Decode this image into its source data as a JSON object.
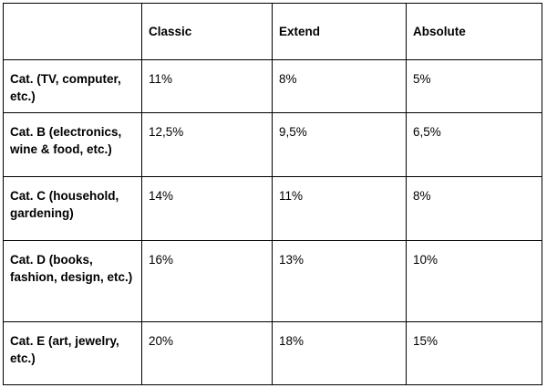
{
  "table": {
    "columns": [
      "Classic",
      "Extend",
      "Absolute"
    ],
    "rows": [
      {
        "label": "Cat. (TV, computer, etc.)",
        "cells": [
          "11%",
          "8%",
          "5%"
        ]
      },
      {
        "label": "Cat. B (electronics, wine & food, etc.)",
        "cells": [
          "12,5%",
          "9,5%",
          "6,5%"
        ]
      },
      {
        "label": "Cat. C (household, gardening)",
        "cells": [
          "14%",
          "11%",
          "8%"
        ]
      },
      {
        "label": "Cat. D (books, fashion, design, etc.)",
        "cells": [
          "16%",
          "13%",
          "10%"
        ]
      },
      {
        "label": "Cat. E (art, jewelry, etc.)",
        "cells": [
          "20%",
          "18%",
          "15%"
        ]
      }
    ]
  }
}
